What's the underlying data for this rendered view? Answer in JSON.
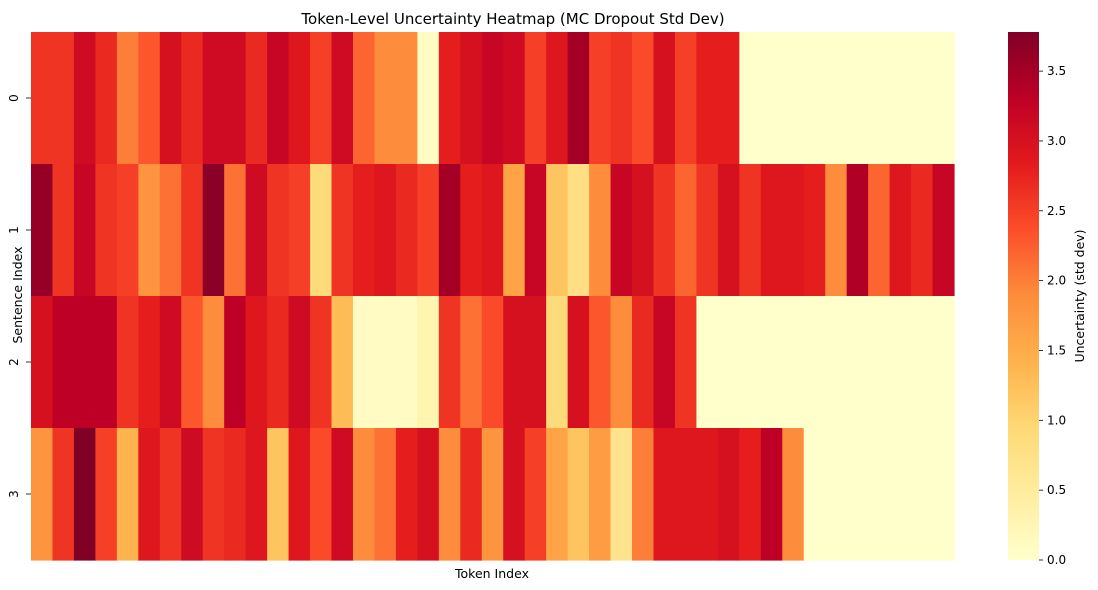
{
  "chart_data": {
    "type": "heatmap",
    "title": "Token-Level Uncertainty Heatmap (MC Dropout Std Dev)",
    "xlabel": "Token Index",
    "ylabel": "Sentence Index",
    "row_labels": [
      "0",
      "1",
      "2",
      "3"
    ],
    "colorbar": {
      "label": "Uncertainty (std dev)",
      "vmin": 0.0,
      "vmax": 3.78,
      "ticks": [
        "0.0",
        "0.5",
        "1.0",
        "1.5",
        "2.0",
        "2.5",
        "3.0",
        "3.5"
      ],
      "colormap": [
        "#ffffcc",
        "#ffeda0",
        "#fed976",
        "#feb24c",
        "#fd8d3c",
        "#fc4e2a",
        "#e31a1c",
        "#bd0026",
        "#800026"
      ]
    },
    "n_tokens": 43,
    "values": [
      [
        2.6,
        2.6,
        3.1,
        2.7,
        2.0,
        2.3,
        3.0,
        2.7,
        3.1,
        3.1,
        2.7,
        3.2,
        2.9,
        2.5,
        3.1,
        2.2,
        1.9,
        1.9,
        0.1,
        2.8,
        3.0,
        3.2,
        3.1,
        2.5,
        2.9,
        3.5,
        2.5,
        2.6,
        2.4,
        3.0,
        2.5,
        2.8,
        2.8,
        0,
        0,
        0,
        0,
        0,
        0,
        0,
        0,
        0,
        0
      ],
      [
        3.6,
        2.6,
        3.2,
        2.6,
        2.5,
        1.8,
        2.1,
        2.6,
        3.7,
        2.1,
        3.1,
        2.6,
        2.5,
        0.9,
        2.6,
        2.8,
        2.9,
        2.7,
        2.5,
        3.5,
        2.8,
        2.9,
        1.6,
        3.2,
        1.2,
        0.8,
        1.9,
        3.2,
        3.0,
        2.6,
        2.2,
        2.6,
        3.0,
        2.6,
        2.9,
        2.9,
        2.8,
        1.9,
        3.4,
        2.2,
        2.9,
        2.7,
        3.2
      ],
      [
        3.0,
        3.3,
        3.3,
        3.3,
        2.6,
        2.8,
        3.1,
        2.3,
        1.9,
        3.3,
        2.9,
        2.7,
        3.1,
        2.6,
        1.3,
        0.1,
        0.1,
        0.1,
        0.3,
        2.6,
        2.1,
        2.4,
        3.0,
        3.0,
        0.9,
        3.0,
        2.3,
        1.9,
        2.7,
        3.2,
        2.6,
        0,
        0,
        0,
        0,
        0,
        0,
        0,
        0,
        0,
        0,
        0,
        0
      ],
      [
        1.8,
        2.6,
        3.8,
        2.5,
        1.4,
        2.9,
        2.6,
        3.1,
        2.6,
        2.7,
        2.9,
        1.2,
        2.9,
        2.4,
        3.1,
        1.9,
        2.1,
        2.8,
        3.0,
        1.9,
        2.7,
        1.8,
        3.0,
        2.5,
        1.6,
        1.2,
        1.7,
        0.7,
        2.0,
        2.9,
        2.9,
        2.9,
        3.0,
        2.8,
        3.3,
        1.9,
        0,
        0,
        0,
        0,
        0,
        0,
        0
      ]
    ]
  }
}
